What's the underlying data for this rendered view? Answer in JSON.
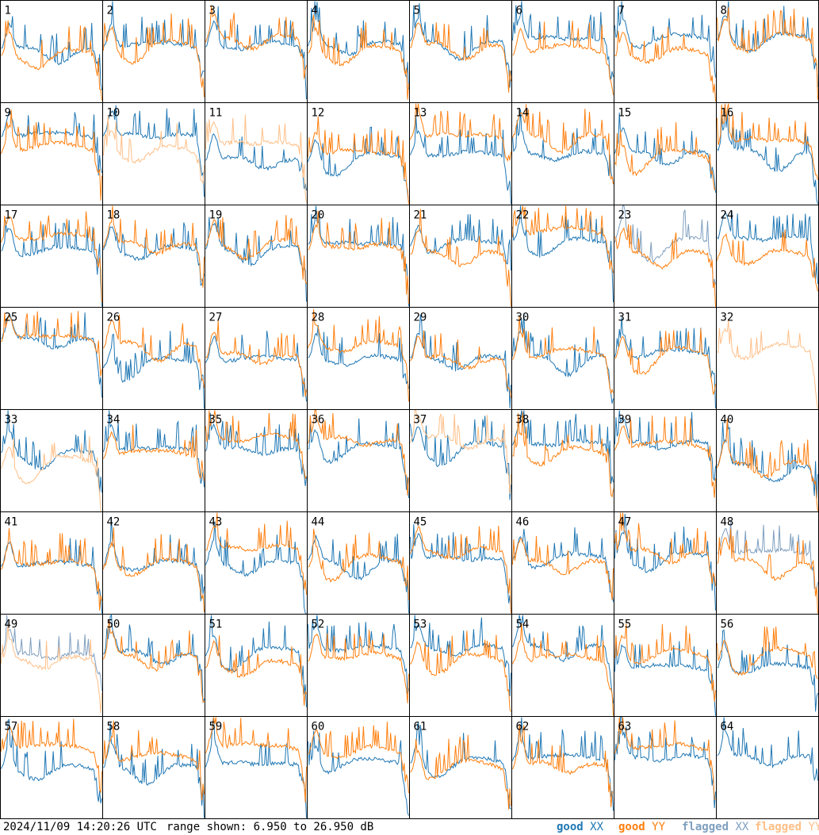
{
  "chart_data": {
    "type": "line",
    "panel_count": 64,
    "grid": {
      "rows": 8,
      "cols": 8
    },
    "panel_labels": [
      "1",
      "2",
      "3",
      "4",
      "5",
      "6",
      "7",
      "8",
      "9",
      "10",
      "11",
      "12",
      "13",
      "14",
      "15",
      "16",
      "17",
      "18",
      "19",
      "20",
      "21",
      "22",
      "23",
      "24",
      "25",
      "26",
      "27",
      "28",
      "29",
      "30",
      "31",
      "32",
      "33",
      "34",
      "35",
      "36",
      "37",
      "38",
      "39",
      "40",
      "41",
      "42",
      "43",
      "44",
      "45",
      "46",
      "47",
      "48",
      "49",
      "50",
      "51",
      "52",
      "53",
      "54",
      "55",
      "56",
      "57",
      "58",
      "59",
      "60",
      "61",
      "62",
      "63",
      "64"
    ],
    "ylim": [
      6.95,
      26.95
    ],
    "y_units": "dB",
    "series_names": [
      "good XX",
      "good YY",
      "flagged XX",
      "flagged YY"
    ],
    "colors": {
      "good_xx": "#1f77b4",
      "good_yy": "#ff7f0e",
      "flagged_xx": "#7f9fbf",
      "flagged_yy": "#ffbf87"
    },
    "flagged_xx_panels": [
      23,
      48,
      49
    ],
    "flagged_yy_panels": [
      10,
      11,
      32,
      33,
      37,
      49,
      64
    ],
    "absent_xx_panels": [
      32
    ],
    "absent_yy_panels": [
      64
    ]
  },
  "footer": {
    "timestamp": "2024/11/09 14:20:26 UTC",
    "range_text": "range shown: 6.950 to 26.950 dB",
    "legend": [
      {
        "prefix": "good ",
        "key": "XX",
        "color": "#1f77b4"
      },
      {
        "prefix": "good ",
        "key": "YY",
        "color": "#ff7f0e"
      },
      {
        "prefix": "flagged ",
        "key": "XX",
        "color": "#7f9fbf"
      },
      {
        "prefix": "flagged ",
        "key": "YY",
        "color": "#ffbf87"
      }
    ]
  }
}
